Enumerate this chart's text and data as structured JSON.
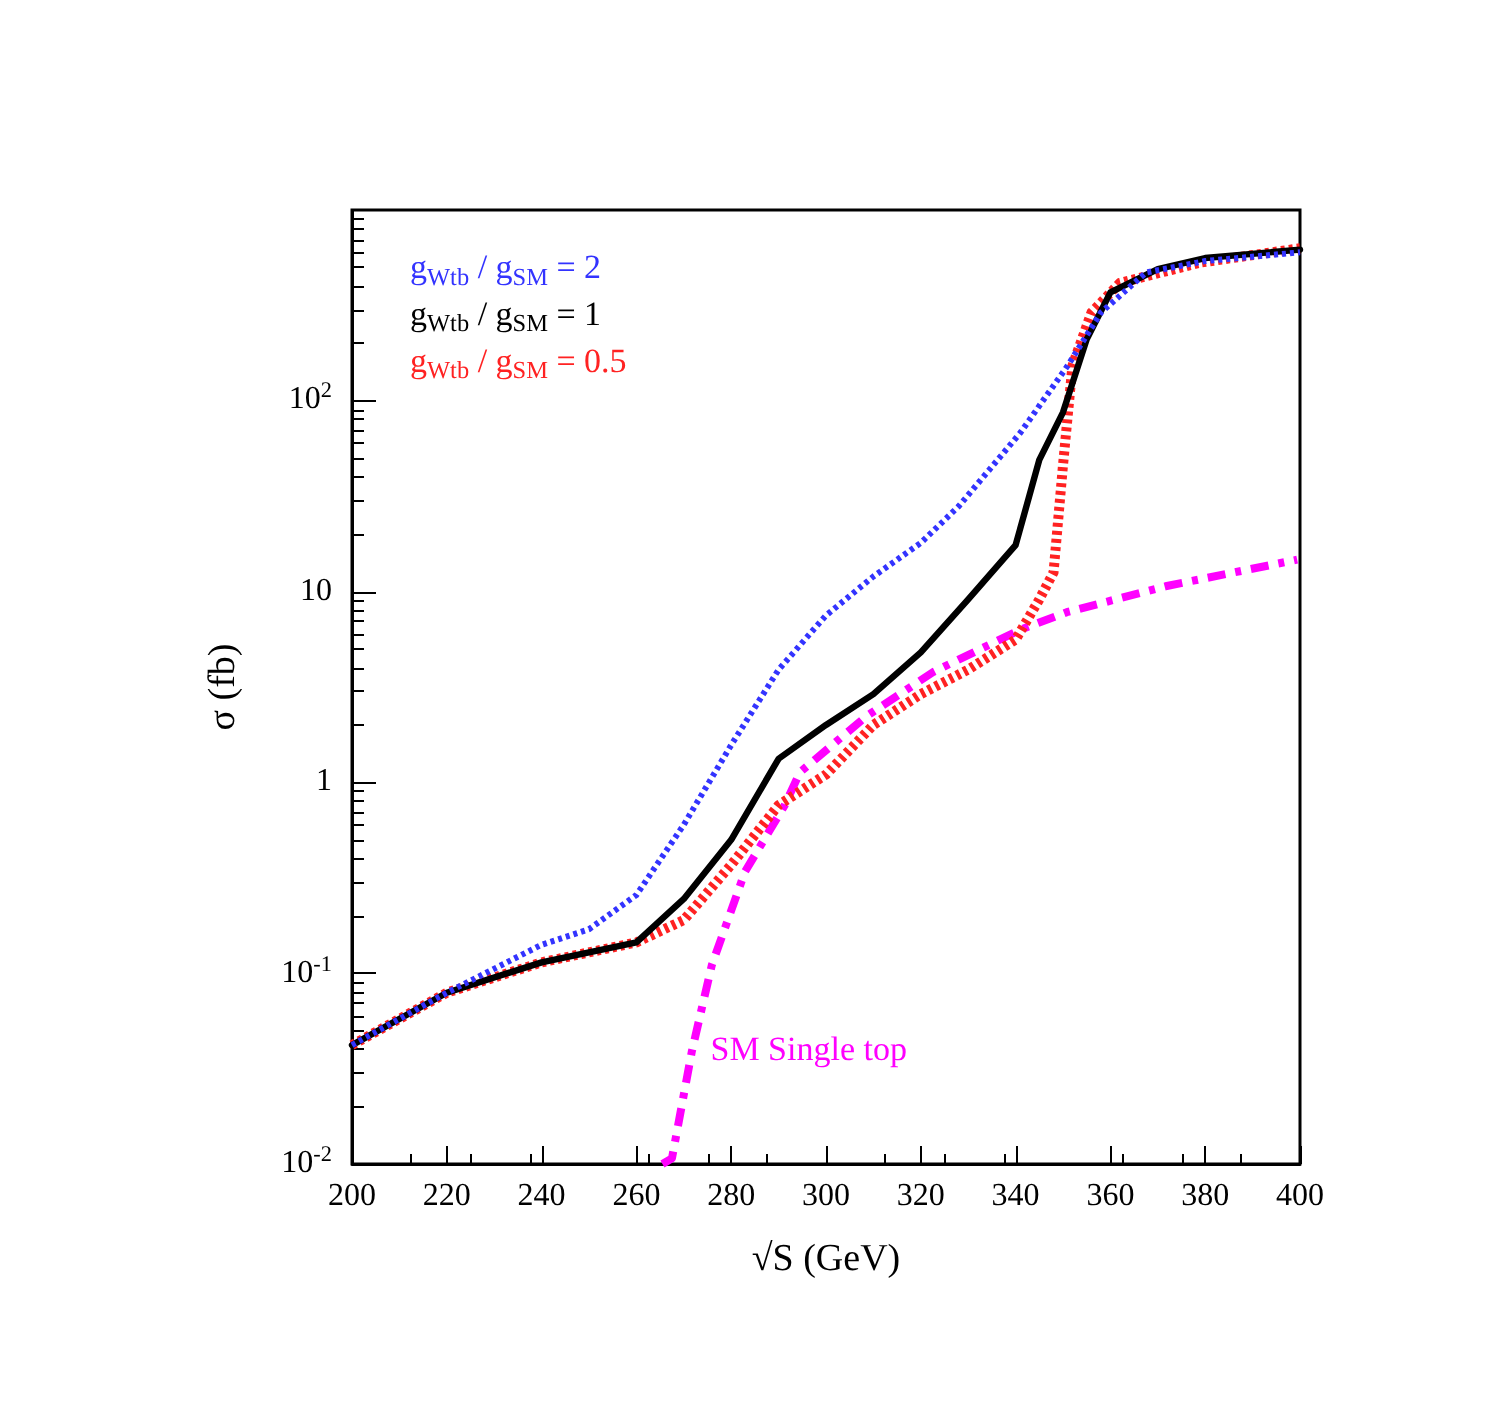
{
  "chart_data": {
    "type": "line",
    "xlabel": "√S (GeV)",
    "ylabel": "σ (fb)",
    "log": "y",
    "grid": false,
    "legend": "top left",
    "marker": "none",
    "xlim": [
      200,
      400
    ],
    "xticks": [
      200,
      220,
      240,
      260,
      280,
      300,
      320,
      340,
      360,
      380,
      400
    ],
    "ylim": [
      0.01,
      1000
    ],
    "yticks": [
      {
        "value": 0.01,
        "label": "10$^{-2}$"
      },
      {
        "value": 0.1,
        "label": "10$^{-1}$"
      },
      {
        "value": 1,
        "label": "1"
      },
      {
        "value": 10,
        "label": "10"
      },
      {
        "value": 100,
        "label": "10$^{2}$"
      }
    ],
    "series": [
      {
        "name": "g$_{Wtb}$ / g$_{SM}$ = 2",
        "color": "#3333ff",
        "line_style": "dotted",
        "x": [
          200,
          220,
          240,
          250,
          260,
          270,
          280,
          290,
          300,
          310,
          320,
          328,
          341,
          351,
          358,
          367.5,
          380,
          400
        ],
        "values": [
          0.042,
          0.079,
          0.141,
          0.17,
          0.257,
          0.6,
          1.57,
          3.9,
          7.5,
          12,
          18,
          28,
          68,
          153,
          290,
          470,
          540,
          600
        ]
      },
      {
        "name": "g$_{Wtb}$ / g$_{SM}$ = 1",
        "color": "#000000",
        "line_style": "solid",
        "x": [
          200,
          220,
          240,
          260,
          270,
          280,
          290,
          300,
          310,
          320,
          330,
          340,
          345,
          350,
          355,
          360,
          370,
          380,
          400
        ],
        "values": [
          0.042,
          0.079,
          0.114,
          0.145,
          0.245,
          0.5,
          1.33,
          2.0,
          2.9,
          4.8,
          9.1,
          17.5,
          49,
          87,
          210,
          370,
          490,
          560,
          620
        ]
      },
      {
        "name": "g$_{Wtb}$ / g$_{SM}$ = 0.5",
        "color": "#ff2222",
        "line_style": "dotted",
        "x": [
          200,
          220,
          240,
          260,
          270,
          280,
          290,
          300,
          310,
          320,
          330,
          340,
          345,
          348,
          350,
          352,
          356,
          362,
          379,
          400
        ],
        "values": [
          0.042,
          0.079,
          0.114,
          0.145,
          0.19,
          0.37,
          0.76,
          1.1,
          2.0,
          2.9,
          3.9,
          5.6,
          9.1,
          12.6,
          46,
          153,
          290,
          415,
          530,
          630
        ]
      },
      {
        "name": "SM Single top",
        "color": "#ff00ff",
        "line_style": "dashed",
        "x": [
          265.5,
          267.5,
          271.7,
          275.9,
          282.9,
          291.3,
          294.5,
          308.6,
          322.7,
          340.9,
          350.8,
          371.9,
          399.4
        ],
        "values": [
          0.01,
          0.0107,
          0.039,
          0.11,
          0.34,
          0.76,
          1.13,
          2.23,
          3.8,
          6.3,
          7.8,
          10.7,
          14.7
        ]
      }
    ]
  }
}
